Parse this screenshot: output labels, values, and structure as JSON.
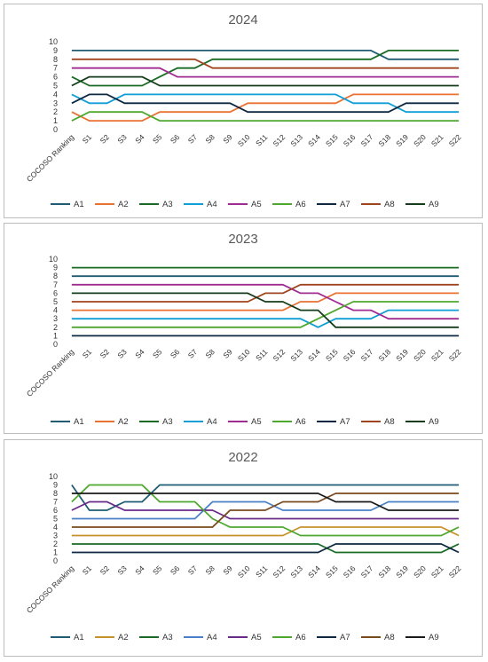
{
  "chart_data": [
    {
      "type": "line",
      "title": "2024",
      "categories": [
        "COCOSO Ranking",
        "S1",
        "S2",
        "S3",
        "S4",
        "S5",
        "S6",
        "S7",
        "S8",
        "S9",
        "S10",
        "S11",
        "S12",
        "S13",
        "S14",
        "S15",
        "S16",
        "S17",
        "S18",
        "S19",
        "S20",
        "S21",
        "S22"
      ],
      "yticks": [
        "0",
        "1",
        "2",
        "3",
        "4",
        "5",
        "6",
        "7",
        "8",
        "9",
        "10"
      ],
      "ylim": [
        0,
        10
      ],
      "grid": false,
      "legend": "bottom",
      "series": [
        {
          "name": "A1",
          "color": "#1f5c73",
          "values": [
            9,
            9,
            9,
            9,
            9,
            9,
            9,
            9,
            9,
            9,
            9,
            9,
            9,
            9,
            9,
            9,
            9,
            9,
            8,
            8,
            8,
            8,
            8
          ]
        },
        {
          "name": "A2",
          "color": "#e97132",
          "values": [
            2,
            1,
            1,
            1,
            1,
            2,
            2,
            2,
            2,
            2,
            3,
            3,
            3,
            3,
            3,
            3,
            4,
            4,
            4,
            4,
            4,
            4,
            4
          ]
        },
        {
          "name": "A3",
          "color": "#196b24",
          "values": [
            6,
            5,
            5,
            5,
            5,
            6,
            7,
            7,
            8,
            8,
            8,
            8,
            8,
            8,
            8,
            8,
            8,
            8,
            9,
            9,
            9,
            9,
            9
          ]
        },
        {
          "name": "A4",
          "color": "#0f9ed5",
          "values": [
            4,
            3,
            3,
            4,
            4,
            4,
            4,
            4,
            4,
            4,
            4,
            4,
            4,
            4,
            4,
            4,
            3,
            3,
            3,
            2,
            2,
            2,
            2
          ]
        },
        {
          "name": "A5",
          "color": "#a02b93",
          "values": [
            7,
            7,
            7,
            7,
            7,
            7,
            6,
            6,
            6,
            6,
            6,
            6,
            6,
            6,
            6,
            6,
            6,
            6,
            6,
            6,
            6,
            6,
            6
          ]
        },
        {
          "name": "A6",
          "color": "#4ea72e",
          "values": [
            1,
            2,
            2,
            2,
            2,
            1,
            1,
            1,
            1,
            1,
            1,
            1,
            1,
            1,
            1,
            1,
            1,
            1,
            1,
            1,
            1,
            1,
            1
          ]
        },
        {
          "name": "A7",
          "color": "#0e2841",
          "values": [
            3,
            4,
            4,
            3,
            3,
            3,
            3,
            3,
            3,
            3,
            2,
            2,
            2,
            2,
            2,
            2,
            2,
            2,
            2,
            3,
            3,
            3,
            3
          ]
        },
        {
          "name": "A8",
          "color": "#a0431f",
          "values": [
            8,
            8,
            8,
            8,
            8,
            8,
            8,
            8,
            7,
            7,
            7,
            7,
            7,
            7,
            7,
            7,
            7,
            7,
            7,
            7,
            7,
            7,
            7
          ]
        },
        {
          "name": "A9",
          "color": "#153d1b",
          "values": [
            5,
            6,
            6,
            6,
            6,
            5,
            5,
            5,
            5,
            5,
            5,
            5,
            5,
            5,
            5,
            5,
            5,
            5,
            5,
            5,
            5,
            5,
            5
          ]
        }
      ]
    },
    {
      "type": "line",
      "title": "2023",
      "categories": [
        "COCOSO Ranking",
        "S1",
        "S2",
        "S3",
        "S4",
        "S5",
        "S6",
        "S7",
        "S8",
        "S9",
        "S10",
        "S11",
        "S12",
        "S13",
        "S14",
        "S15",
        "S16",
        "S17",
        "S18",
        "S19",
        "S20",
        "S21",
        "S22"
      ],
      "yticks": [
        "0",
        "1",
        "2",
        "3",
        "4",
        "5",
        "6",
        "7",
        "8",
        "9",
        "10"
      ],
      "ylim": [
        0,
        10
      ],
      "grid": false,
      "legend": "bottom",
      "series": [
        {
          "name": "A1",
          "color": "#1f5c73",
          "values": [
            8,
            8,
            8,
            8,
            8,
            8,
            8,
            8,
            8,
            8,
            8,
            8,
            8,
            8,
            8,
            8,
            8,
            8,
            8,
            8,
            8,
            8,
            8
          ]
        },
        {
          "name": "A2",
          "color": "#e97132",
          "values": [
            4,
            4,
            4,
            4,
            4,
            4,
            4,
            4,
            4,
            4,
            4,
            4,
            4,
            5,
            5,
            6,
            6,
            6,
            6,
            6,
            6,
            6,
            6
          ]
        },
        {
          "name": "A3",
          "color": "#196b24",
          "values": [
            9,
            9,
            9,
            9,
            9,
            9,
            9,
            9,
            9,
            9,
            9,
            9,
            9,
            9,
            9,
            9,
            9,
            9,
            9,
            9,
            9,
            9,
            9
          ]
        },
        {
          "name": "A4",
          "color": "#0f9ed5",
          "values": [
            3,
            3,
            3,
            3,
            3,
            3,
            3,
            3,
            3,
            3,
            3,
            3,
            3,
            3,
            2,
            3,
            3,
            3,
            4,
            4,
            4,
            4,
            4
          ]
        },
        {
          "name": "A5",
          "color": "#a02b93",
          "values": [
            7,
            7,
            7,
            7,
            7,
            7,
            7,
            7,
            7,
            7,
            7,
            7,
            7,
            6,
            6,
            5,
            4,
            4,
            3,
            3,
            3,
            3,
            3
          ]
        },
        {
          "name": "A6",
          "color": "#4ea72e",
          "values": [
            2,
            2,
            2,
            2,
            2,
            2,
            2,
            2,
            2,
            2,
            2,
            2,
            2,
            2,
            3,
            4,
            5,
            5,
            5,
            5,
            5,
            5,
            5
          ]
        },
        {
          "name": "A7",
          "color": "#0e2841",
          "values": [
            1,
            1,
            1,
            1,
            1,
            1,
            1,
            1,
            1,
            1,
            1,
            1,
            1,
            1,
            1,
            1,
            1,
            1,
            1,
            1,
            1,
            1,
            1
          ]
        },
        {
          "name": "A8",
          "color": "#a0431f",
          "values": [
            5,
            5,
            5,
            5,
            5,
            5,
            5,
            5,
            5,
            5,
            5,
            6,
            6,
            7,
            7,
            7,
            7,
            7,
            7,
            7,
            7,
            7,
            7
          ]
        },
        {
          "name": "A9",
          "color": "#153d1b",
          "values": [
            6,
            6,
            6,
            6,
            6,
            6,
            6,
            6,
            6,
            6,
            6,
            5,
            5,
            4,
            4,
            2,
            2,
            2,
            2,
            2,
            2,
            2,
            2
          ]
        }
      ]
    },
    {
      "type": "line",
      "title": "2022",
      "categories": [
        "COCOSO Ranking",
        "S1",
        "S2",
        "S3",
        "S4",
        "S5",
        "S6",
        "S7",
        "S8",
        "S9",
        "S10",
        "S11",
        "S12",
        "S13",
        "S14",
        "S15",
        "S16",
        "S17",
        "S18",
        "S19",
        "S20",
        "S21",
        "S22"
      ],
      "yticks": [
        "0",
        "1",
        "2",
        "3",
        "4",
        "5",
        "6",
        "7",
        "8",
        "9",
        "10"
      ],
      "ylim": [
        0,
        10
      ],
      "grid": false,
      "legend": "bottom",
      "series": [
        {
          "name": "A1",
          "color": "#1f5c73",
          "values": [
            9,
            6,
            6,
            7,
            7,
            9,
            9,
            9,
            9,
            9,
            9,
            9,
            9,
            9,
            9,
            9,
            9,
            9,
            9,
            9,
            9,
            9,
            9
          ]
        },
        {
          "name": "A2",
          "color": "#c8922a",
          "values": [
            3,
            3,
            3,
            3,
            3,
            3,
            3,
            3,
            3,
            3,
            3,
            3,
            3,
            4,
            4,
            4,
            4,
            4,
            4,
            4,
            4,
            4,
            3
          ]
        },
        {
          "name": "A3",
          "color": "#196b24",
          "values": [
            2,
            2,
            2,
            2,
            2,
            2,
            2,
            2,
            2,
            2,
            2,
            2,
            2,
            2,
            2,
            1,
            1,
            1,
            1,
            1,
            1,
            1,
            2
          ]
        },
        {
          "name": "A4",
          "color": "#4a80c7",
          "values": [
            5,
            5,
            5,
            5,
            5,
            5,
            5,
            5,
            7,
            7,
            7,
            7,
            6,
            6,
            6,
            6,
            6,
            6,
            7,
            7,
            7,
            7,
            7
          ]
        },
        {
          "name": "A5",
          "color": "#6a2a8a",
          "values": [
            6,
            7,
            7,
            6,
            6,
            6,
            6,
            6,
            6,
            5,
            5,
            5,
            5,
            5,
            5,
            5,
            5,
            5,
            5,
            5,
            5,
            5,
            5
          ]
        },
        {
          "name": "A6",
          "color": "#4ea72e",
          "values": [
            7,
            9,
            9,
            9,
            9,
            7,
            7,
            7,
            5,
            4,
            4,
            4,
            4,
            3,
            3,
            3,
            3,
            3,
            3,
            3,
            3,
            3,
            4
          ]
        },
        {
          "name": "A7",
          "color": "#0e2841",
          "values": [
            1,
            1,
            1,
            1,
            1,
            1,
            1,
            1,
            1,
            1,
            1,
            1,
            1,
            1,
            1,
            2,
            2,
            2,
            2,
            2,
            2,
            2,
            1
          ]
        },
        {
          "name": "A8",
          "color": "#7a4a1f",
          "values": [
            4,
            4,
            4,
            4,
            4,
            4,
            4,
            4,
            4,
            6,
            6,
            6,
            7,
            7,
            7,
            8,
            8,
            8,
            8,
            8,
            8,
            8,
            8
          ]
        },
        {
          "name": "A9",
          "color": "#1a1a1a",
          "values": [
            8,
            8,
            8,
            8,
            8,
            8,
            8,
            8,
            8,
            8,
            8,
            8,
            8,
            8,
            8,
            7,
            7,
            7,
            6,
            6,
            6,
            6,
            6
          ]
        }
      ]
    }
  ]
}
